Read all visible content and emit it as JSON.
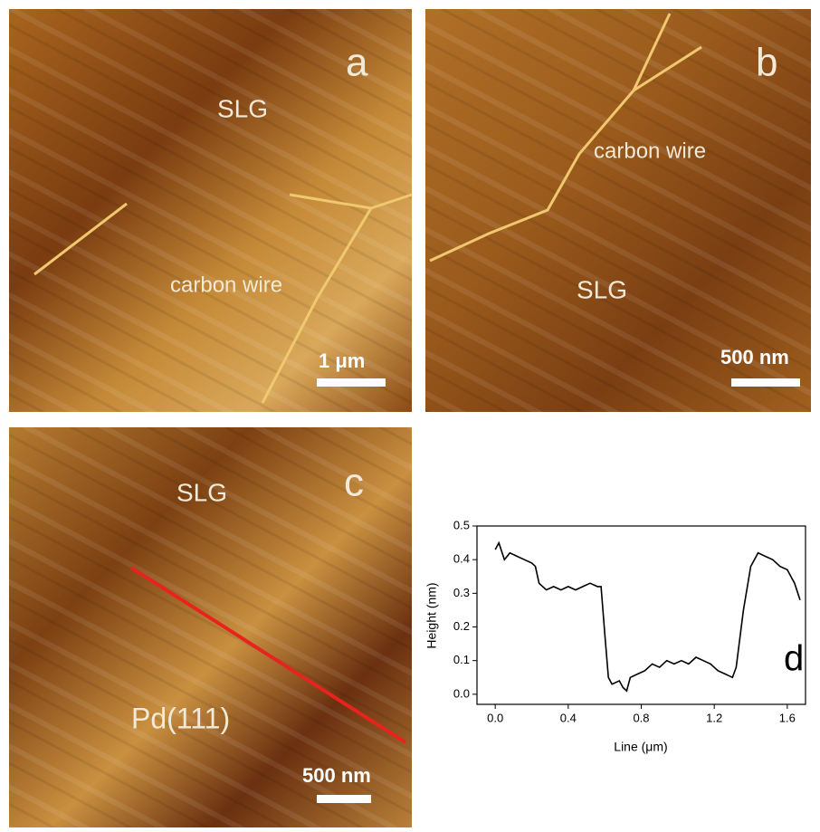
{
  "panels": {
    "a": {
      "label": "a",
      "region": "SLG",
      "feature": "carbon wire",
      "scale": "1 μm"
    },
    "b": {
      "label": "b",
      "feature": "carbon wire",
      "region": "SLG",
      "scale": "500 nm"
    },
    "c": {
      "label": "c",
      "region": "SLG",
      "substrate": "Pd(111)",
      "scale": "500 nm"
    }
  },
  "chart_data": {
    "type": "line",
    "annotation": "d",
    "x_label": "Line (μm)",
    "y_label": "Height (nm)",
    "xlim": [
      -0.1,
      1.7
    ],
    "ylim": [
      -0.03,
      0.5
    ],
    "xticks": [
      {
        "value": 0,
        "label": "0.0"
      },
      0.4,
      0.8,
      1.2,
      1.6
    ],
    "yticks": [
      {
        "value": 0,
        "label": "0.0"
      },
      0.1,
      0.2,
      0.3,
      0.4,
      0.5
    ],
    "color": "#000000",
    "x": [
      0.0,
      0.02,
      0.05,
      0.08,
      0.12,
      0.16,
      0.2,
      0.22,
      0.24,
      0.28,
      0.32,
      0.36,
      0.4,
      0.44,
      0.48,
      0.52,
      0.56,
      0.58,
      0.6,
      0.62,
      0.64,
      0.68,
      0.7,
      0.72,
      0.74,
      0.78,
      0.82,
      0.86,
      0.9,
      0.94,
      0.98,
      1.02,
      1.06,
      1.1,
      1.14,
      1.18,
      1.22,
      1.26,
      1.3,
      1.32,
      1.36,
      1.4,
      1.44,
      1.48,
      1.52,
      1.56,
      1.6,
      1.64,
      1.67
    ],
    "values": [
      0.43,
      0.45,
      0.4,
      0.42,
      0.41,
      0.4,
      0.39,
      0.38,
      0.33,
      0.31,
      0.32,
      0.31,
      0.32,
      0.31,
      0.32,
      0.33,
      0.32,
      0.32,
      0.18,
      0.05,
      0.03,
      0.04,
      0.02,
      0.01,
      0.05,
      0.06,
      0.07,
      0.09,
      0.08,
      0.1,
      0.09,
      0.1,
      0.09,
      0.11,
      0.1,
      0.09,
      0.07,
      0.06,
      0.05,
      0.08,
      0.25,
      0.38,
      0.42,
      0.41,
      0.4,
      0.38,
      0.37,
      0.33,
      0.28
    ]
  }
}
